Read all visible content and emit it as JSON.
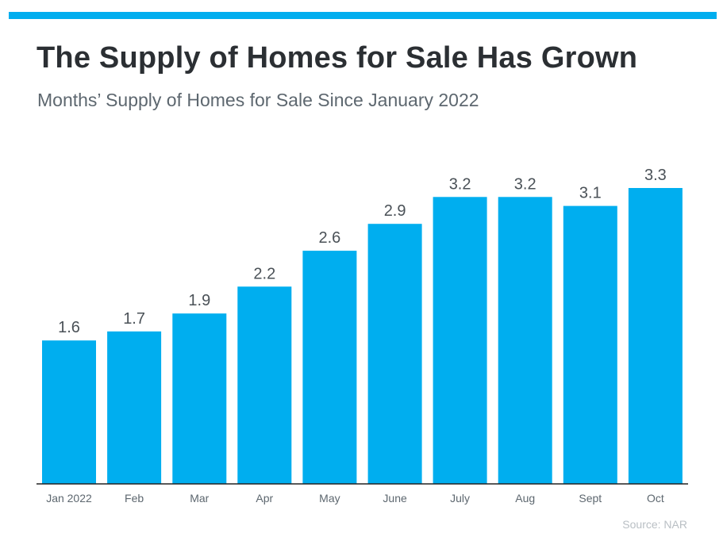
{
  "title": "The Supply of Homes for Sale Has Grown",
  "subtitle": "Months’ Supply of Homes for Sale Since January 2022",
  "source": "Source: NAR",
  "colors": {
    "bar": "#00aeef",
    "accent": "#00aeef",
    "axis": "#222222",
    "value_label": "#4a5157",
    "tick_label": "#5d676f"
  },
  "chart_data": {
    "type": "bar",
    "categories": [
      "Jan 2022",
      "Feb",
      "Mar",
      "Apr",
      "May",
      "June",
      "July",
      "Aug",
      "Sept",
      "Oct"
    ],
    "values": [
      1.6,
      1.7,
      1.9,
      2.2,
      2.6,
      2.9,
      3.2,
      3.2,
      3.1,
      3.3
    ],
    "value_labels": [
      "1.6",
      "1.7",
      "1.9",
      "2.2",
      "2.6",
      "2.9",
      "3.2",
      "3.2",
      "3.1",
      "3.3"
    ],
    "title": "The Supply of Homes for Sale Has Grown",
    "xlabel": "",
    "ylabel": "",
    "ylim": [
      0,
      3.3
    ],
    "grid": false,
    "legend": "none"
  }
}
